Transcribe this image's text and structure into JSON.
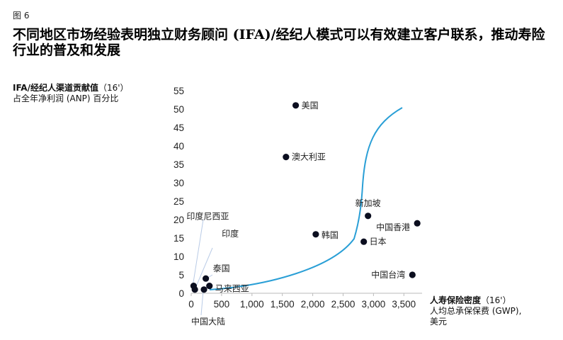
{
  "figure_label": "图 6",
  "title": "不同地区市场经验表明独立财务顾问 (IFA)/经纪人模式可以有效建立客户联系，推动寿险行业的普及和发展",
  "colors": {
    "curve": "#2a9fd6",
    "points": "#0b0e1f",
    "axis": "#bbbbbb"
  },
  "chart_data": {
    "type": "scatter",
    "ylabel": {
      "bold": "IFA/经纪人渠道贡献值",
      "suffix": "（16'）",
      "line2": "占全年净利润 (ANP) 百分比"
    },
    "xlabel": {
      "bold": "人寿保险密度",
      "suffix": "（16'）",
      "line2": "人均总承保保费 (GWP),",
      "line3": "美元"
    },
    "xlim": [
      0,
      3700
    ],
    "ylim": [
      0,
      55
    ],
    "x_ticks": [
      "0",
      "500",
      "1,000",
      "1,500",
      "2,000",
      "2,500",
      "3,000",
      "3,500"
    ],
    "y_ticks": [
      "0",
      "5",
      "10",
      "15",
      "20",
      "25",
      "30",
      "35",
      "40",
      "45",
      "50",
      "55"
    ],
    "points": [
      {
        "name": "美国",
        "x": 1720,
        "y": 51
      },
      {
        "name": "澳大利亚",
        "x": 1560,
        "y": 37
      },
      {
        "name": "新加坡",
        "x": 2910,
        "y": 21
      },
      {
        "name": "中国香港",
        "x": 3720,
        "y": 19
      },
      {
        "name": "韩国",
        "x": 2050,
        "y": 16
      },
      {
        "name": "日本",
        "x": 2840,
        "y": 14
      },
      {
        "name": "中国台湾",
        "x": 3640,
        "y": 5
      },
      {
        "name": "印度尼西亚",
        "x": 40,
        "y": 2
      },
      {
        "name": "印度",
        "x": 60,
        "y": 1
      },
      {
        "name": "泰国",
        "x": 240,
        "y": 4
      },
      {
        "name": "马来西亚",
        "x": 300,
        "y": 2
      },
      {
        "name": "中国大陆",
        "x": 210,
        "y": 1
      }
    ],
    "grid": false
  }
}
